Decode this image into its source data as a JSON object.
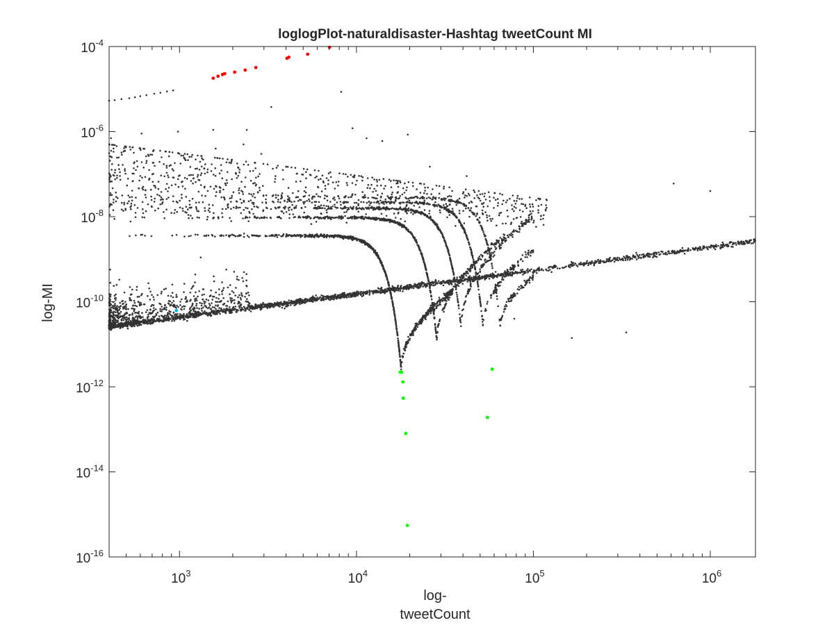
{
  "chart_data": {
    "type": "scatter",
    "title": "loglogPlot-naturaldisaster-Hashtag tweetCount MI",
    "xlabel_lines": [
      "log-",
      "tweetCount"
    ],
    "ylabel": "log-MI",
    "xscale": "log",
    "yscale": "log",
    "xlim": [
      400,
      1800000
    ],
    "ylim": [
      1e-16,
      0.0001
    ],
    "x_ticks": [
      {
        "value": 1000,
        "base": "10",
        "exp": "3"
      },
      {
        "value": 10000,
        "base": "10",
        "exp": "4"
      },
      {
        "value": 100000,
        "base": "10",
        "exp": "5"
      },
      {
        "value": 1000000,
        "base": "10",
        "exp": "6"
      }
    ],
    "y_ticks": [
      {
        "value": 0.0001,
        "base": "10",
        "exp": "-4"
      },
      {
        "value": 1e-06,
        "base": "10",
        "exp": "-6"
      },
      {
        "value": 1e-08,
        "base": "10",
        "exp": "-8"
      },
      {
        "value": 1e-10,
        "base": "10",
        "exp": "-10"
      },
      {
        "value": 1e-12,
        "base": "10",
        "exp": "-12"
      },
      {
        "value": 1e-14,
        "base": "10",
        "exp": "-14"
      },
      {
        "value": 1e-16,
        "base": "10",
        "exp": "-16"
      }
    ],
    "grid": false,
    "legend": "none",
    "colors": {
      "main": "#333333",
      "red": "#ff0000",
      "green": "#00ff00",
      "cyan": "#00b4e6",
      "axis": "#262626"
    },
    "series": [
      {
        "color_key": "red",
        "x": [
          1550,
          1650,
          1750,
          1800,
          2050,
          2350,
          2700,
          4050,
          4150,
          5300,
          7050
        ],
        "y": [
          1.8e-05,
          2e-05,
          2.2e-05,
          2.3e-05,
          2.5e-05,
          2.8e-05,
          3.2e-05,
          5.3e-05,
          5.6e-05,
          6.6e-05,
          9.6e-05
        ]
      },
      {
        "color_key": "green",
        "x": [
          17700,
          18000,
          18300,
          18400,
          19000,
          19400,
          55000,
          58500
        ],
        "y": [
          2.2e-12,
          2.2e-12,
          1.3e-12,
          5.4e-13,
          8e-14,
          5.5e-16,
          1.9e-13,
          2.6e-12
        ]
      },
      {
        "color_key": "cyan",
        "x": [
          960
        ],
        "y": [
          6.2e-11
        ]
      },
      {
        "color_key": "main",
        "components": [
          {
            "kind": "power_line",
            "x_range": [
              400,
              1800000
            ],
            "y_start": 2.6e-11,
            "slope": 0.55,
            "n": 2600,
            "jitter": 0.06,
            "above_prob": 0.55,
            "above_spread": 0.35,
            "head_weight": 0.55
          },
          {
            "kind": "v_curve",
            "vertex_x": 17900,
            "vertex_y": 2.6e-12,
            "x_start": 400,
            "y_start": 3.6e-09,
            "k": 1.2,
            "right_to": 35000,
            "n": 700
          },
          {
            "kind": "v_curve",
            "vertex_x": 28500,
            "vertex_y": 1.2e-11,
            "x_start": 400,
            "y_start": 9.5e-09,
            "k": 1.2,
            "right_to": 70000,
            "n": 500
          },
          {
            "kind": "v_curve",
            "vertex_x": 39000,
            "vertex_y": 2.6e-11,
            "x_start": 400,
            "y_start": 1.6e-08,
            "k": 1.2,
            "right_to": 100000,
            "n": 400
          },
          {
            "kind": "v_curve",
            "vertex_x": 52000,
            "vertex_y": 2.6e-11,
            "x_start": 400,
            "y_start": 2.2e-08,
            "k": 1.2,
            "right_to": 100000,
            "n": 280
          },
          {
            "kind": "v_curve",
            "vertex_x": 65000,
            "vertex_y": 2.6e-11,
            "x_start": 400,
            "y_start": 2.8e-08,
            "k": 1.2,
            "right_to": 100000,
            "n": 200
          },
          {
            "kind": "cloud",
            "x_range": [
              400,
              120000
            ],
            "y_range": [
              3e-10,
              1e-06
            ],
            "n": 900,
            "density": "upper-left"
          },
          {
            "kind": "points",
            "x": [
              400,
              430,
              470,
              520,
              560,
              600,
              650,
              720,
              780,
              850,
              920,
              8200,
              11400,
              19500,
              3300,
              1550,
              2400,
              410,
              610,
              980,
              1000,
              1600,
              2300,
              2900,
              9500,
              14000,
              26000,
              40000,
              42000,
              78000,
              165000,
              335000,
              620000,
              1000000
            ],
            "y": [
              5.3e-06,
              5.5e-06,
              5.8e-06,
              6.1e-06,
              6.4e-06,
              6.8e-06,
              7.2e-06,
              7.8e-06,
              8.2e-06,
              8.8e-06,
              9.3e-06,
              8.6e-06,
              7e-07,
              8.5e-07,
              3.8e-06,
              1.1e-06,
              1.1e-06,
              7e-07,
              9e-07,
              1e-06,
              3e-07,
              4e-07,
              5e-07,
              3e-07,
              1.2e-06,
              6e-07,
              1.5e-07,
              3.5e-08,
              9e-08,
              4e-11,
              1.4e-11,
              1.9e-11,
              6e-08,
              4e-08
            ]
          }
        ]
      }
    ]
  }
}
